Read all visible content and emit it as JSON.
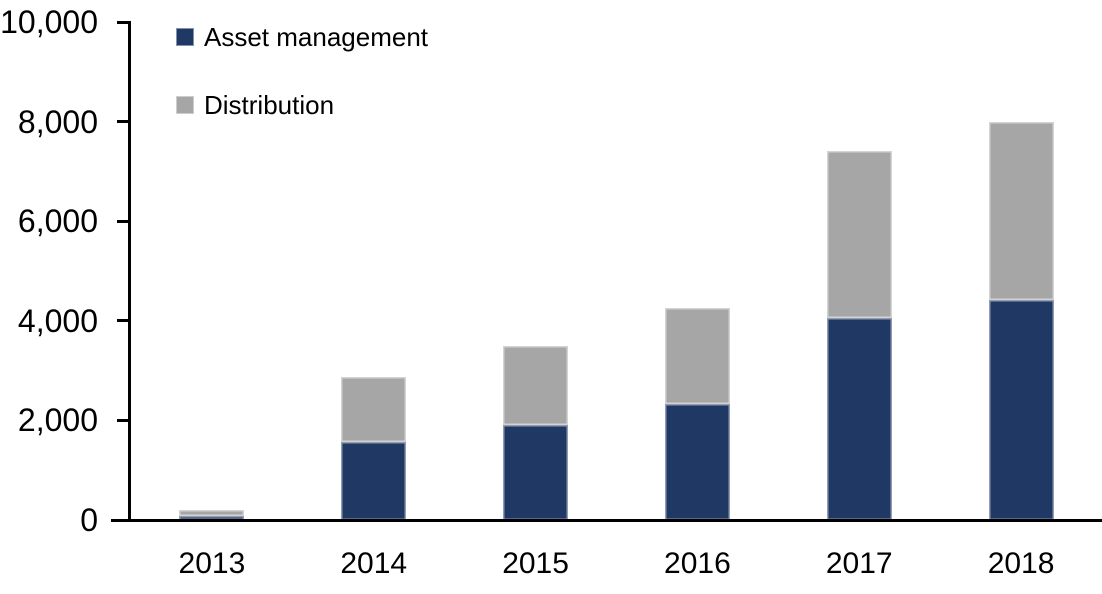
{
  "chart_data": {
    "type": "bar",
    "stacked": true,
    "title": "",
    "categories": [
      "2013",
      "2014",
      "2015",
      "2016",
      "2017",
      "2018"
    ],
    "series": [
      {
        "name": "Asset management",
        "color": "#1F3864",
        "values": [
          90,
          1560,
          1900,
          2320,
          4050,
          4420
        ]
      },
      {
        "name": "Distribution",
        "color": "#A6A6A6",
        "values": [
          110,
          1310,
          1600,
          1940,
          3350,
          3580
        ]
      }
    ],
    "totals": [
      200,
      2870,
      3500,
      4260,
      7400,
      8000
    ],
    "xlabel": "",
    "ylabel": "",
    "ylim": [
      0,
      10000
    ],
    "y_ticks": [
      0,
      2000,
      4000,
      6000,
      8000,
      10000
    ],
    "y_tick_labels": [
      "0",
      "2,000",
      "4,000",
      "6,000",
      "8,000",
      "10,000"
    ],
    "grid": "off",
    "legend_position": "top-left",
    "axis_color": "#000000",
    "background_color": "#FFFFFF"
  }
}
